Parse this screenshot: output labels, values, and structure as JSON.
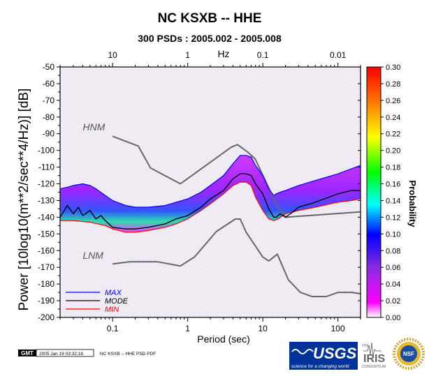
{
  "header": {
    "title": "NC KSXB -- HHE",
    "subtitle": "300 PSDs : 2005.002 - 2005.008"
  },
  "footer": {
    "gmt_badge": "GMT",
    "timestamp": "2005 Jan 19 03:32:18",
    "caption": "NC KSXB -- HHE PSD PDF",
    "logos": [
      "usgs-logo",
      "iris-consortium-logo",
      "nsf-seal"
    ],
    "usgs_text": "USGS",
    "usgs_tagline": "science for a changing world",
    "iris_top": "THE",
    "iris_text": "IRIS",
    "iris_bottom": "CONSORTIUM",
    "nsf_text": "NSF"
  },
  "chart_data": {
    "type": "heatmap",
    "title": "NC KSXB -- HHE",
    "subtitle": "300 PSDs : 2005.002 - 2005.008",
    "xlabel": "Period (sec)",
    "ylabel": "Power [10log10(m**2/sec**4/Hz)] [dB]",
    "x_scale": "log",
    "xlim": [
      0.02,
      200
    ],
    "ylim": [
      -200,
      -50
    ],
    "x_ticks": [
      0.1,
      1,
      10,
      100
    ],
    "x_tick_labels": [
      "0.1",
      "1",
      "10",
      "100"
    ],
    "top_axis_label": "Hz",
    "top_ticks_hz": [
      10,
      1,
      0.1,
      0.01
    ],
    "top_tick_labels": [
      "10",
      "1",
      "0.1",
      "0.01"
    ],
    "y_ticks": [
      -50,
      -60,
      -70,
      -80,
      -90,
      -100,
      -110,
      -120,
      -130,
      -140,
      -150,
      -160,
      -170,
      -180,
      -190,
      -200
    ],
    "colorbar": {
      "label": "Probability",
      "range": [
        0,
        0.3
      ],
      "ticks": [
        0.0,
        0.02,
        0.04,
        0.06,
        0.08,
        0.1,
        0.12,
        0.14,
        0.16,
        0.18,
        0.2,
        0.22,
        0.24,
        0.26,
        0.28,
        0.3
      ],
      "tick_labels": [
        "0.00",
        "0.02",
        "0.04",
        "0.06",
        "0.08",
        "0.10",
        "0.12",
        "0.14",
        "0.16",
        "0.18",
        "0.20",
        "0.22",
        "0.24",
        "0.26",
        "0.28",
        "0.30"
      ],
      "colors": [
        "#ffffff",
        "#ff00ff",
        "#8a2be2",
        "#0000ff",
        "#00ffff",
        "#00ff00",
        "#ffff00",
        "#ff8000",
        "#ff0000"
      ]
    },
    "annotations": [
      {
        "text": "HNM",
        "x": 0.04,
        "y": -88
      },
      {
        "text": "LNM",
        "x": 0.04,
        "y": -165
      }
    ],
    "series": [
      {
        "name": "MAX",
        "color": "#0000ff",
        "x": [
          0.02,
          0.025,
          0.03,
          0.04,
          0.05,
          0.06,
          0.08,
          0.1,
          0.15,
          0.2,
          0.3,
          0.5,
          0.7,
          1,
          1.5,
          2,
          3,
          4,
          5,
          6,
          7,
          8,
          10,
          12,
          14,
          15,
          17,
          20,
          30,
          50,
          100,
          150,
          200
        ],
        "y": [
          -123,
          -122,
          -121,
          -120,
          -121,
          -123,
          -127,
          -130,
          -133,
          -134,
          -134,
          -133,
          -131,
          -129,
          -125,
          -121,
          -115,
          -108,
          -103,
          -103,
          -104,
          -109,
          -115,
          -123,
          -127,
          -126,
          -125,
          -124,
          -121,
          -118,
          -114,
          -111,
          -109
        ]
      },
      {
        "name": "MODE",
        "color": "#000000",
        "x": [
          0.02,
          0.025,
          0.03,
          0.035,
          0.04,
          0.05,
          0.06,
          0.07,
          0.08,
          0.1,
          0.15,
          0.2,
          0.3,
          0.5,
          0.7,
          1,
          1.5,
          2,
          3,
          4,
          5,
          6,
          7,
          8,
          10,
          12,
          14,
          15,
          17,
          20,
          25,
          30,
          50,
          100,
          150,
          200
        ],
        "y": [
          -140,
          -133,
          -138,
          -134,
          -139,
          -136,
          -141,
          -139,
          -142,
          -146,
          -147,
          -147,
          -146,
          -144,
          -141,
          -139,
          -134,
          -129,
          -124,
          -117,
          -114,
          -114,
          -115,
          -120,
          -126,
          -135,
          -140,
          -140,
          -138,
          -140,
          -137,
          -134,
          -131,
          -126,
          -124,
          -124
        ]
      },
      {
        "name": "MIN",
        "color": "#ff0000",
        "x": [
          0.02,
          0.03,
          0.05,
          0.08,
          0.1,
          0.15,
          0.2,
          0.3,
          0.5,
          0.7,
          1,
          1.5,
          2,
          3,
          4,
          5,
          6,
          7,
          8,
          10,
          12,
          14,
          16,
          20,
          30,
          50,
          100,
          150,
          200
        ],
        "y": [
          -142,
          -142,
          -143,
          -145,
          -147,
          -149,
          -149,
          -148,
          -146,
          -144,
          -141,
          -136,
          -132,
          -126,
          -121,
          -119,
          -119,
          -121,
          -128,
          -136,
          -141,
          -142,
          -141,
          -138,
          -136,
          -134,
          -131,
          -130,
          -129
        ]
      },
      {
        "name": "HNM",
        "color": "#666666",
        "x": [
          0.1,
          0.22,
          0.32,
          0.8,
          3.8,
          4.6,
          6.3,
          7.9,
          15.4,
          20,
          354.8
        ],
        "y": [
          -91.5,
          -97.4,
          -110.5,
          -120,
          -98,
          -96.5,
          -101,
          -105,
          -133,
          -140,
          -136
        ]
      },
      {
        "name": "LNM",
        "color": "#666666",
        "x": [
          0.1,
          0.17,
          0.4,
          0.8,
          1.24,
          2.4,
          4.3,
          5,
          6,
          10,
          12,
          15.6,
          21.9,
          31.6,
          45,
          70,
          101,
          154,
          328
        ],
        "y": [
          -168,
          -166.7,
          -166.7,
          -169.2,
          -163.7,
          -148.6,
          -141.1,
          -141.1,
          -149,
          -163.8,
          -166.2,
          -162.1,
          -177.5,
          -185,
          -187.5,
          -187.5,
          -185,
          -185,
          -187.5
        ]
      }
    ],
    "legend": {
      "placement": "bottom-left",
      "entries": [
        "MAX",
        "MODE",
        "MIN"
      ]
    }
  }
}
